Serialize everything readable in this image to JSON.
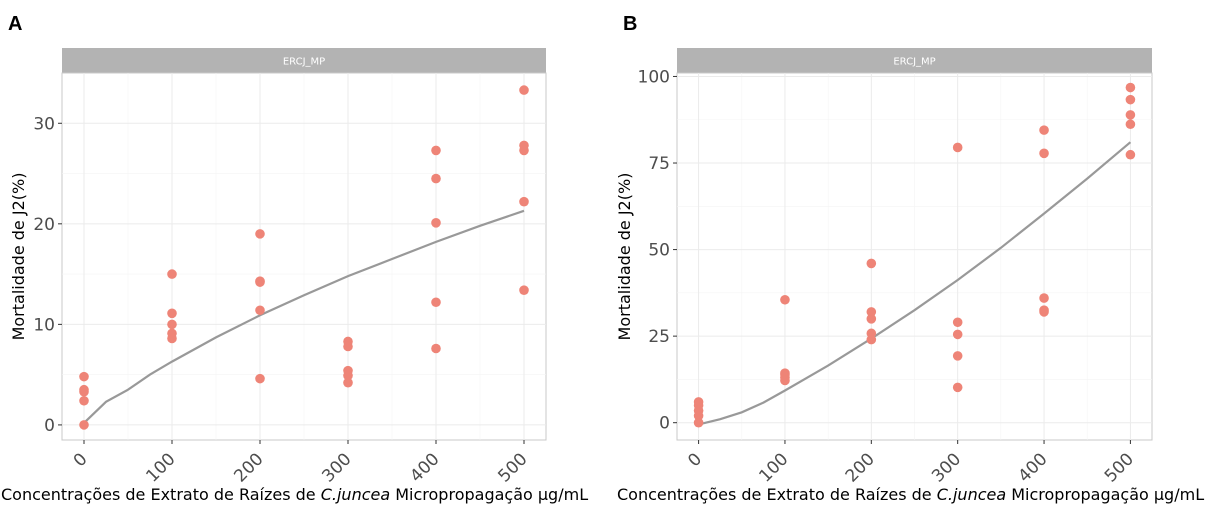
{
  "chart_data": [
    {
      "type": "scatter",
      "panel_label": "A",
      "strip": "ERCJ_MP",
      "xlabel_prefix": "Concentrações de Extrato de Raízes de ",
      "xlabel_italic": "C.juncea",
      "xlabel_suffix": " Micropropagação µg/mL",
      "ylabel": "Mortalidade  de J2(%)",
      "xlim": [
        -25,
        525
      ],
      "ylim": [
        -1.5,
        35
      ],
      "x_ticks": [
        0,
        100,
        200,
        300,
        400,
        500
      ],
      "x_tick_labels": [
        "0",
        "100",
        "200",
        "300",
        "400",
        "500"
      ],
      "y_ticks": [
        0,
        10,
        20,
        30
      ],
      "y_tick_labels": [
        "0",
        "10",
        "20",
        "30"
      ],
      "point_color": "#ee8477",
      "line_color": "#999999",
      "grid": true,
      "points": [
        {
          "x": 0,
          "y": 4.8
        },
        {
          "x": 0,
          "y": 3.5
        },
        {
          "x": 0,
          "y": 3.3
        },
        {
          "x": 0,
          "y": 2.4
        },
        {
          "x": 0,
          "y": 0.0
        },
        {
          "x": 100,
          "y": 15.0
        },
        {
          "x": 100,
          "y": 11.1
        },
        {
          "x": 100,
          "y": 10.0
        },
        {
          "x": 100,
          "y": 9.1
        },
        {
          "x": 100,
          "y": 8.6
        },
        {
          "x": 200,
          "y": 19.0
        },
        {
          "x": 200,
          "y": 14.3
        },
        {
          "x": 200,
          "y": 14.2
        },
        {
          "x": 200,
          "y": 11.4
        },
        {
          "x": 200,
          "y": 4.6
        },
        {
          "x": 300,
          "y": 8.3
        },
        {
          "x": 300,
          "y": 7.8
        },
        {
          "x": 300,
          "y": 5.4
        },
        {
          "x": 300,
          "y": 4.9
        },
        {
          "x": 300,
          "y": 4.2
        },
        {
          "x": 400,
          "y": 27.3
        },
        {
          "x": 400,
          "y": 24.5
        },
        {
          "x": 400,
          "y": 20.1
        },
        {
          "x": 400,
          "y": 12.2
        },
        {
          "x": 400,
          "y": 7.6
        },
        {
          "x": 500,
          "y": 33.3
        },
        {
          "x": 500,
          "y": 27.8
        },
        {
          "x": 500,
          "y": 27.3
        },
        {
          "x": 500,
          "y": 22.2
        },
        {
          "x": 500,
          "y": 13.4
        }
      ],
      "fit_line": [
        {
          "x": 0,
          "y": 0.2
        },
        {
          "x": 25,
          "y": 2.3
        },
        {
          "x": 50,
          "y": 3.5
        },
        {
          "x": 75,
          "y": 5.0
        },
        {
          "x": 100,
          "y": 6.3
        },
        {
          "x": 150,
          "y": 8.7
        },
        {
          "x": 200,
          "y": 10.9
        },
        {
          "x": 250,
          "y": 12.9
        },
        {
          "x": 300,
          "y": 14.8
        },
        {
          "x": 350,
          "y": 16.5
        },
        {
          "x": 400,
          "y": 18.2
        },
        {
          "x": 450,
          "y": 19.8
        },
        {
          "x": 500,
          "y": 21.3
        }
      ]
    },
    {
      "type": "scatter",
      "panel_label": "B",
      "strip": "ERCJ_MP",
      "xlabel_prefix": "Concentrações de Extrato de Raízes de ",
      "xlabel_italic": "C.juncea",
      "xlabel_suffix": " Micropropagação µg/mL",
      "ylabel": "Mortalidade de J2(%)",
      "xlim": [
        -25,
        525
      ],
      "ylim": [
        -5,
        101
      ],
      "x_ticks": [
        0,
        100,
        200,
        300,
        400,
        500
      ],
      "x_tick_labels": [
        "0",
        "100",
        "200",
        "300",
        "400",
        "500"
      ],
      "y_ticks": [
        0,
        25,
        50,
        75,
        100
      ],
      "y_tick_labels": [
        "0",
        "25",
        "50",
        "75",
        "100"
      ],
      "point_color": "#ee8477",
      "line_color": "#999999",
      "grid": true,
      "points": [
        {
          "x": 0,
          "y": 6.0
        },
        {
          "x": 0,
          "y": 5.0
        },
        {
          "x": 0,
          "y": 3.5
        },
        {
          "x": 0,
          "y": 2.0
        },
        {
          "x": 0,
          "y": 0.0
        },
        {
          "x": 100,
          "y": 35.5
        },
        {
          "x": 100,
          "y": 14.3
        },
        {
          "x": 100,
          "y": 13.8
        },
        {
          "x": 100,
          "y": 13.0
        },
        {
          "x": 100,
          "y": 12.2
        },
        {
          "x": 200,
          "y": 46.0
        },
        {
          "x": 200,
          "y": 32.0
        },
        {
          "x": 200,
          "y": 30.0
        },
        {
          "x": 200,
          "y": 25.8
        },
        {
          "x": 200,
          "y": 24.0
        },
        {
          "x": 300,
          "y": 79.5
        },
        {
          "x": 300,
          "y": 29.0
        },
        {
          "x": 300,
          "y": 25.5
        },
        {
          "x": 300,
          "y": 19.3
        },
        {
          "x": 300,
          "y": 10.2
        },
        {
          "x": 400,
          "y": 84.5
        },
        {
          "x": 400,
          "y": 77.8
        },
        {
          "x": 400,
          "y": 36.0
        },
        {
          "x": 400,
          "y": 32.5
        },
        {
          "x": 400,
          "y": 32.0
        },
        {
          "x": 500,
          "y": 96.8
        },
        {
          "x": 500,
          "y": 93.3
        },
        {
          "x": 500,
          "y": 88.9
        },
        {
          "x": 500,
          "y": 86.2
        },
        {
          "x": 500,
          "y": 77.4
        }
      ],
      "fit_line": [
        {
          "x": 0,
          "y": -0.5
        },
        {
          "x": 25,
          "y": 1.0
        },
        {
          "x": 50,
          "y": 3.0
        },
        {
          "x": 75,
          "y": 5.8
        },
        {
          "x": 100,
          "y": 9.3
        },
        {
          "x": 150,
          "y": 16.5
        },
        {
          "x": 200,
          "y": 24.3
        },
        {
          "x": 250,
          "y": 32.5
        },
        {
          "x": 300,
          "y": 41.2
        },
        {
          "x": 350,
          "y": 50.5
        },
        {
          "x": 400,
          "y": 60.4
        },
        {
          "x": 450,
          "y": 70.5
        },
        {
          "x": 500,
          "y": 81.0
        }
      ]
    }
  ]
}
